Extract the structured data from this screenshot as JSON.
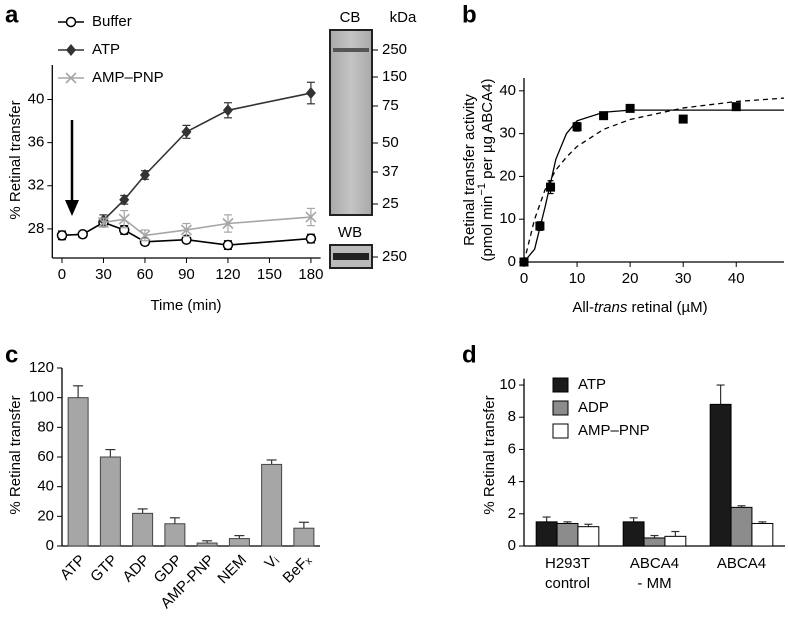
{
  "chart_data": [
    {
      "type": "line",
      "panel_label": "a",
      "xlabel": "Time (min)",
      "ylabel": "% Retinal transfer",
      "x": [
        0,
        15,
        30,
        45,
        60,
        90,
        120,
        180
      ],
      "xlim": [
        -7,
        187
      ],
      "xticks": [
        0,
        30,
        60,
        90,
        120,
        150,
        180
      ],
      "ylim": [
        25.3,
        43.2
      ],
      "yticks": [
        28,
        32,
        36,
        40
      ],
      "legend": "upper left",
      "series": [
        {
          "name": "Buffer",
          "color": "#000000",
          "marker": "circle",
          "values": [
            27.4,
            27.5,
            28.6,
            27.9,
            26.8,
            27.0,
            26.5,
            27.1
          ],
          "errors": [
            0.4,
            0.3,
            0.4,
            0.4,
            0.3,
            0.3,
            0.4,
            0.4
          ]
        },
        {
          "name": "ATP",
          "color": "#333333",
          "marker": "diamond",
          "values": [
            null,
            null,
            28.8,
            30.7,
            33.0,
            37.0,
            39.0,
            40.6
          ],
          "errors": [
            null,
            null,
            0.5,
            0.4,
            0.4,
            0.6,
            0.7,
            1.0
          ]
        },
        {
          "name": "AMP–PNP",
          "color": "#a6a6a6",
          "marker": "x",
          "values": [
            null,
            null,
            28.6,
            28.9,
            27.4,
            27.9,
            28.5,
            29.1
          ],
          "errors": [
            null,
            null,
            0.4,
            0.8,
            0.5,
            0.6,
            0.8,
            0.8
          ]
        }
      ]
    },
    {
      "type": "scatter",
      "panel_label": "b",
      "xlabel": [
        "All-",
        "trans",
        " retinal (µM)"
      ],
      "ylabel": [
        "Retinal transfer activity",
        "(pmol min",
        "−1",
        " per µg ABCA4)"
      ],
      "x": [
        0,
        3,
        5,
        10,
        15,
        20,
        30,
        40
      ],
      "values": [
        0,
        8.4,
        17.5,
        31.6,
        34.2,
        35.9,
        33.4,
        36.3
      ],
      "errors": [
        0.3,
        1.0,
        1.5,
        1.0,
        0.5,
        0.5,
        0.5,
        0.5
      ],
      "color": "#000000",
      "xlim": [
        0,
        49
      ],
      "xticks": [
        0,
        10,
        20,
        30,
        40
      ],
      "ylim": [
        0,
        43
      ],
      "yticks": [
        0,
        10,
        20,
        30,
        40
      ],
      "fits": [
        {
          "style": "solid",
          "x": [
            0,
            2,
            4,
            6,
            8,
            10,
            15,
            20,
            30,
            40,
            49
          ],
          "values": [
            0,
            3,
            13,
            24,
            30,
            33,
            35,
            35.5,
            35.5,
            35.5,
            35.5
          ]
        },
        {
          "style": "dashed",
          "x": [
            0,
            2,
            4,
            6,
            8,
            10,
            15,
            20,
            30,
            40,
            49
          ],
          "values": [
            0,
            10,
            17,
            21.5,
            24.5,
            27,
            31,
            33.3,
            36,
            37.5,
            38.3
          ]
        }
      ]
    },
    {
      "type": "bar",
      "panel_label": "c",
      "ylabel": "% Retinal transfer",
      "categories": [
        "ATP",
        "GTP",
        "ADP",
        "GDP",
        "AMP-PNP",
        "NEM",
        "Vᵢ",
        "BeFₓ"
      ],
      "values": [
        100,
        60,
        22,
        15,
        2,
        5,
        55,
        12
      ],
      "errors": [
        8,
        5,
        3,
        4,
        1.5,
        2,
        3,
        4
      ],
      "color": "#a6a6a6",
      "ylim": [
        0,
        120
      ],
      "yticks": [
        0,
        20,
        40,
        60,
        80,
        100,
        120
      ]
    },
    {
      "type": "grouped-bar",
      "panel_label": "d",
      "ylabel": "% Retinal transfer",
      "categories": [
        [
          "H293T",
          "control"
        ],
        [
          "ABCA4",
          "- MM"
        ],
        [
          "ABCA4"
        ]
      ],
      "ylim": [
        0,
        10.4
      ],
      "yticks": [
        0,
        2,
        4,
        6,
        8,
        10
      ],
      "legend": "upper left",
      "series": [
        {
          "name": "ATP",
          "color": "#1a1a1a",
          "values": [
            1.5,
            1.5,
            8.8
          ],
          "errors": [
            0.3,
            0.25,
            1.2
          ]
        },
        {
          "name": "ADP",
          "color": "#8c8c8c",
          "values": [
            1.4,
            0.5,
            2.4
          ],
          "errors": [
            0.1,
            0.15,
            0.1
          ]
        },
        {
          "name": "AMP–PNP",
          "color": "#ffffff",
          "values": [
            1.2,
            0.6,
            1.4
          ],
          "errors": [
            0.15,
            0.3,
            0.1
          ]
        }
      ]
    }
  ],
  "gel": {
    "cb": "CB",
    "kda": "kDa",
    "wb": "WB",
    "markers": [
      250,
      150,
      75,
      50,
      37,
      25
    ],
    "wb_marker": 250
  }
}
